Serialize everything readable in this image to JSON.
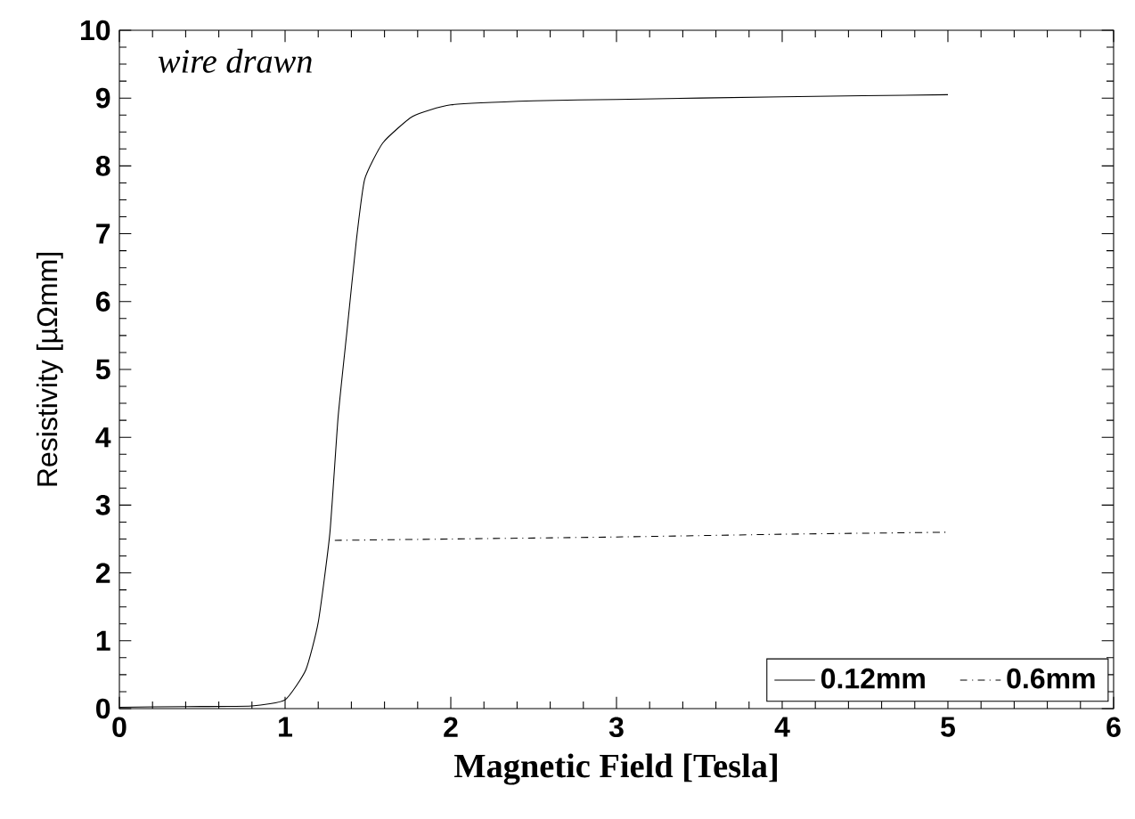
{
  "chart_data": {
    "type": "line",
    "xlabel": "Magnetic Field [Tesla]",
    "ylabel": "Resistivity [µΩmm]",
    "annotations": [
      "wire drawn"
    ],
    "xlim": [
      0,
      6
    ],
    "ylim": [
      0,
      10
    ],
    "xticks": [
      0,
      1,
      2,
      3,
      4,
      5,
      6
    ],
    "yticks": [
      0,
      1,
      2,
      3,
      4,
      5,
      6,
      7,
      8,
      9,
      10
    ],
    "grid": false,
    "legend": "bottom right",
    "marker": "none",
    "series": [
      {
        "name": "0.12mm",
        "color": "#000000",
        "line_style": "solid",
        "x": [
          0,
          0.4,
          0.8,
          1.0,
          1.125,
          1.2,
          1.27,
          1.32,
          1.375,
          1.43,
          1.48,
          1.59,
          1.77,
          2.0,
          2.5,
          3.0,
          4.0,
          5.0
        ],
        "values": [
          0.02,
          0.03,
          0.04,
          0.13,
          0.57,
          1.27,
          2.58,
          4.3,
          5.6,
          6.9,
          7.8,
          8.34,
          8.73,
          8.9,
          8.96,
          8.98,
          9.02,
          9.05
        ]
      },
      {
        "name": "0.6mm",
        "color": "#000000",
        "line_style": "dashdotted",
        "x": [
          1.3,
          2.0,
          3.0,
          4.0,
          5.0
        ],
        "values": [
          2.48,
          2.5,
          2.53,
          2.57,
          2.6
        ]
      }
    ]
  }
}
